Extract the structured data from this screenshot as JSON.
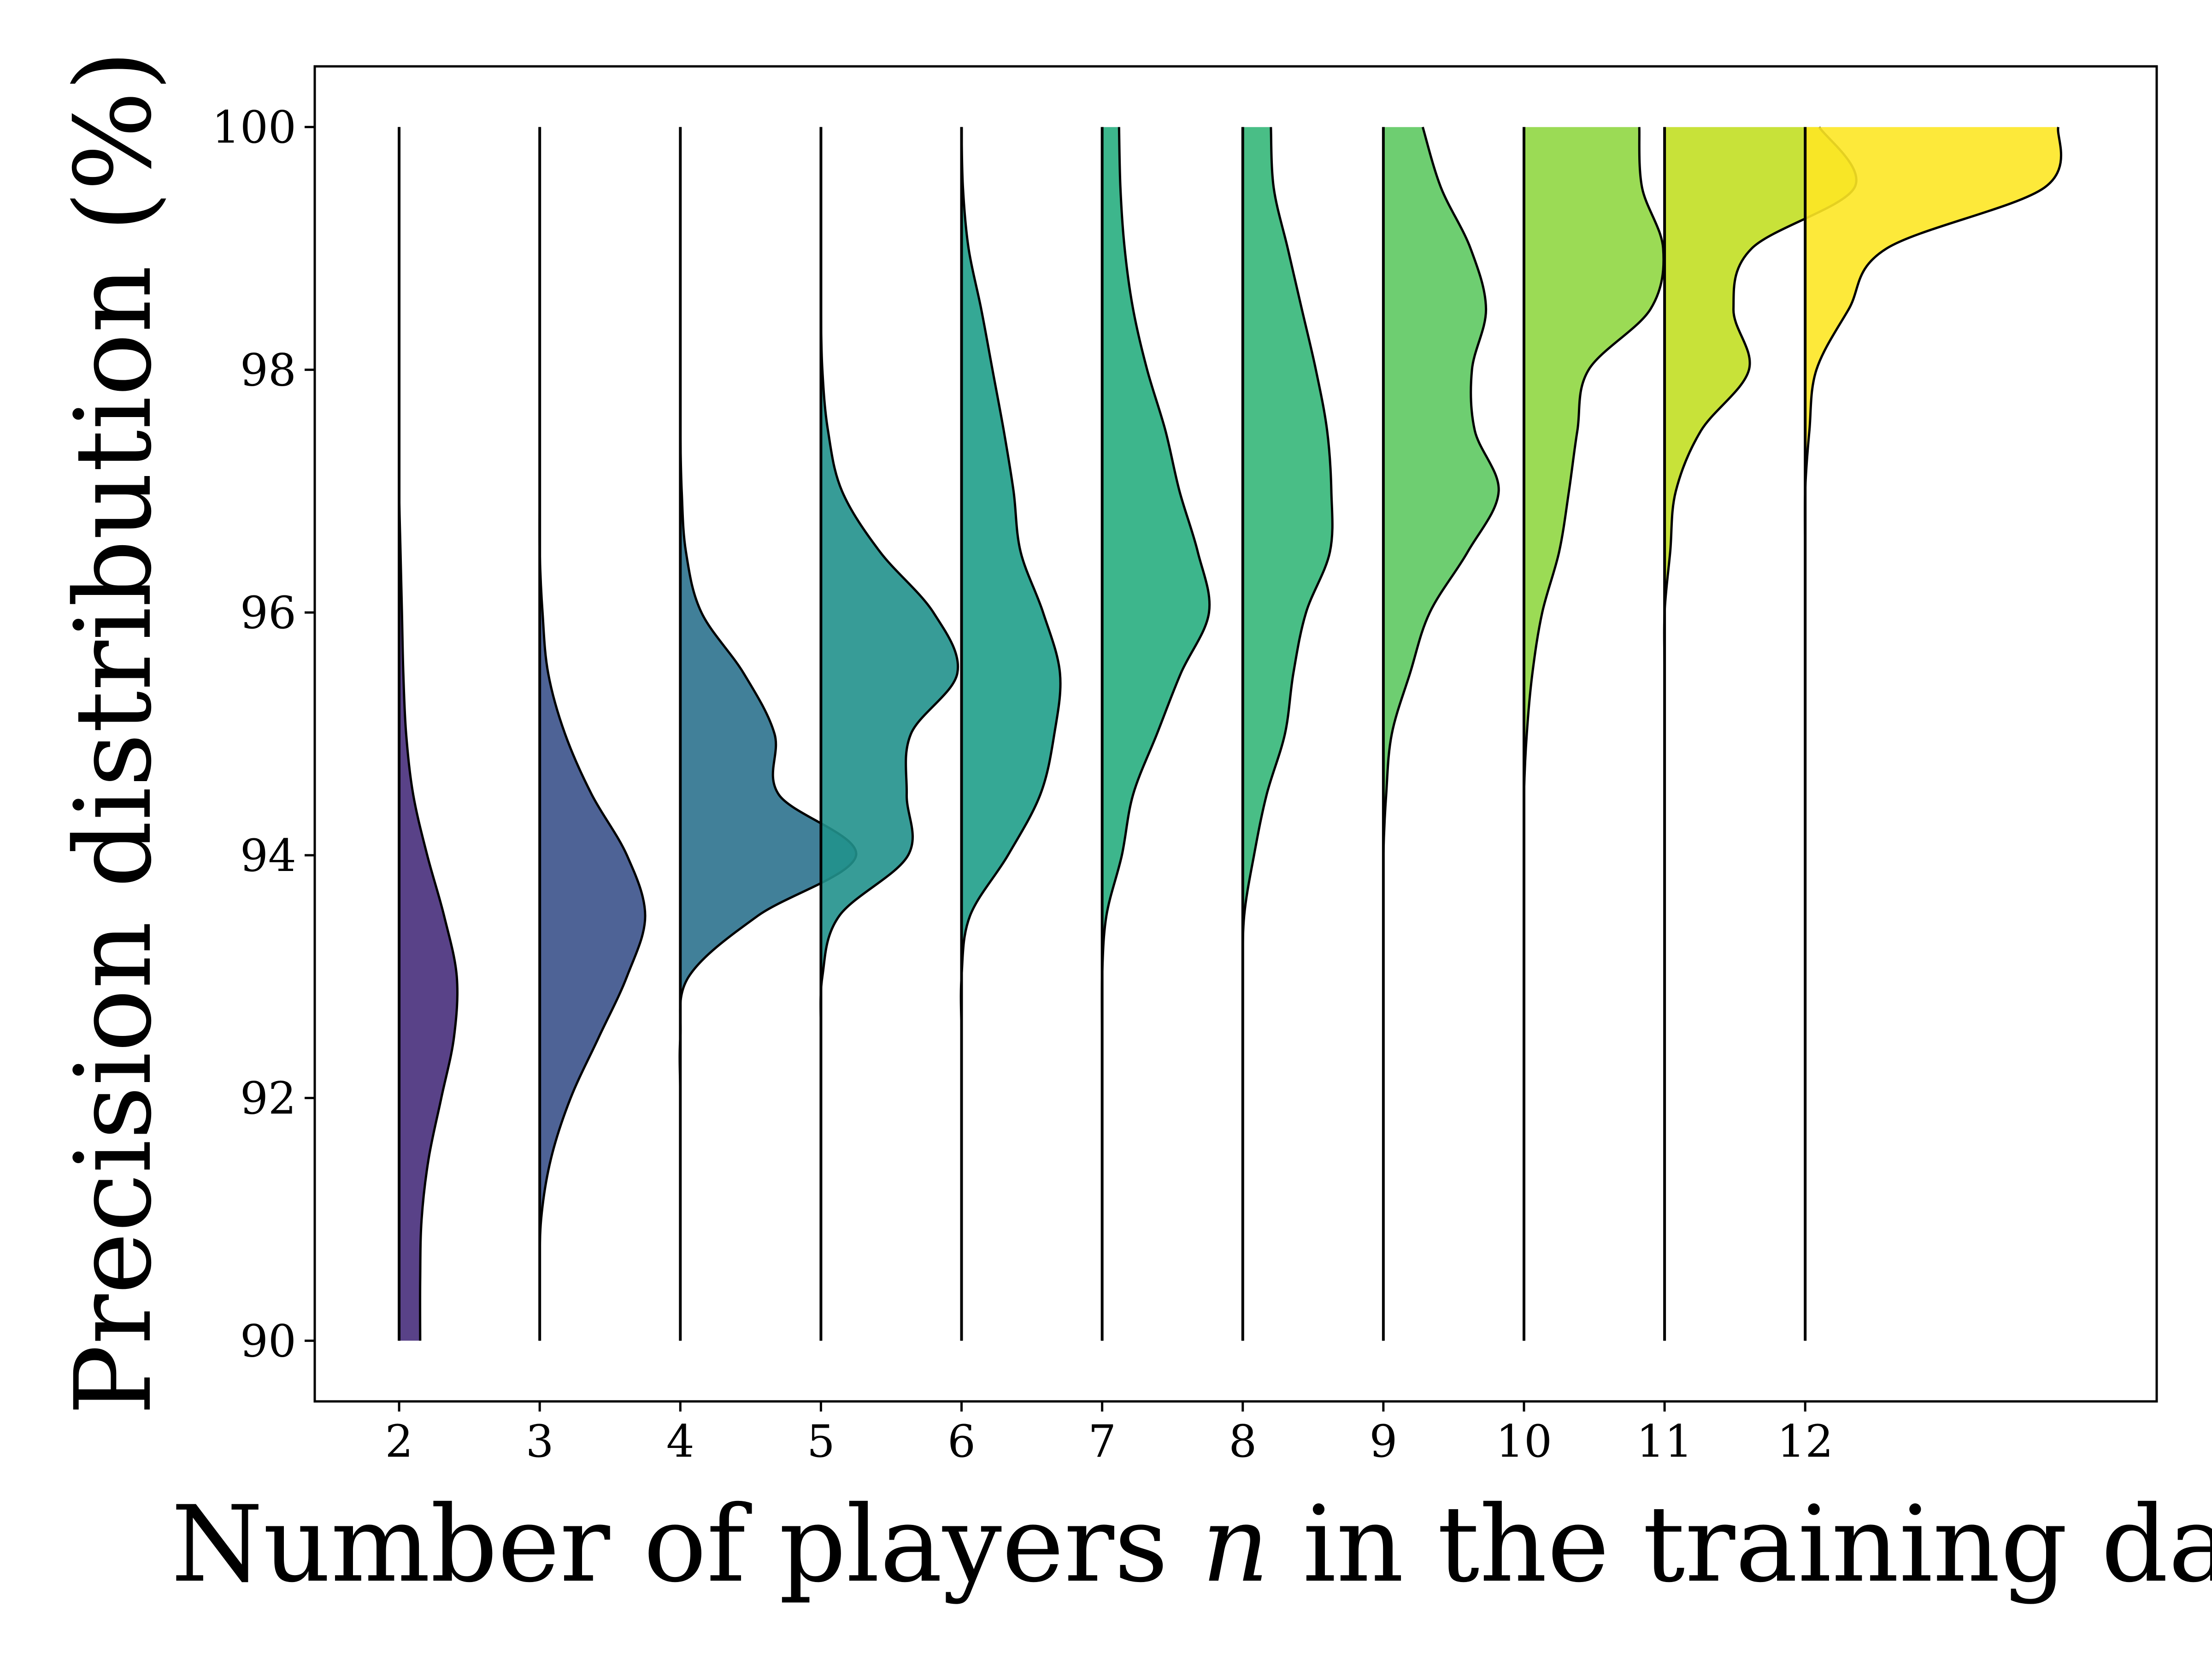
{
  "chart_data": {
    "type": "half-violin (ridgeline)",
    "xlabel_prefix": "Number of players ",
    "xlabel_var": "n",
    "xlabel_suffix": " in the training data",
    "ylabel": "Precision distribution (%)",
    "categories": [
      "2",
      "3",
      "4",
      "5",
      "6",
      "7",
      "8",
      "9",
      "10",
      "11",
      "12"
    ],
    "x_positions": [
      2,
      3,
      4,
      5,
      6,
      7,
      8,
      9,
      10,
      11,
      12
    ],
    "xlim": [
      1.4,
      14.5
    ],
    "ylim": [
      89.5,
      100.5
    ],
    "y_ticks": [
      90,
      92,
      94,
      96,
      98,
      100
    ],
    "y_range": [
      90,
      100
    ],
    "grid": false,
    "colors": [
      "#472d7b",
      "#3b528b",
      "#2c728e",
      "#21918c",
      "#1f9e89",
      "#28ae80",
      "#35b779",
      "#5ec962",
      "#90d743",
      "#c2df23",
      "#fde725"
    ],
    "series": [
      {
        "x": 2,
        "widths_y90_to_100": [
          0.15,
          0.15,
          0.16,
          0.21,
          0.3,
          0.39,
          0.41,
          0.32,
          0.2,
          0.1,
          0.05,
          0.03,
          0.02,
          0.01,
          0.0,
          0.0,
          0.0,
          0.0,
          0.0,
          0.0,
          0.0
        ]
      },
      {
        "x": 3,
        "widths_y90_to_100": [
          0.0,
          0.0,
          0.01,
          0.08,
          0.22,
          0.42,
          0.62,
          0.75,
          0.62,
          0.37,
          0.18,
          0.06,
          0.02,
          0.0,
          0.0,
          0.0,
          0.0,
          0.0,
          0.0,
          0.0,
          0.0
        ]
      },
      {
        "x": 4,
        "widths_y90_to_100": [
          0.0,
          0.0,
          0.0,
          0.0,
          0.0,
          0.0,
          0.06,
          0.55,
          1.25,
          0.7,
          0.67,
          0.45,
          0.15,
          0.04,
          0.01,
          0.0,
          0.0,
          0.0,
          0.0,
          0.0,
          0.0
        ]
      },
      {
        "x": 5,
        "widths_y90_to_100": [
          0.0,
          0.0,
          0.0,
          0.0,
          0.0,
          0.0,
          0.01,
          0.13,
          0.62,
          0.61,
          0.64,
          0.97,
          0.8,
          0.42,
          0.15,
          0.05,
          0.01,
          0.0,
          0.0,
          0.0,
          0.0
        ]
      },
      {
        "x": 6,
        "widths_y90_to_100": [
          0.0,
          0.0,
          0.0,
          0.0,
          0.0,
          0.0,
          0.0,
          0.06,
          0.33,
          0.56,
          0.66,
          0.7,
          0.58,
          0.42,
          0.37,
          0.3,
          0.22,
          0.14,
          0.05,
          0.01,
          0.0
        ]
      },
      {
        "x": 7,
        "widths_y90_to_100": [
          0.0,
          0.0,
          0.0,
          0.0,
          0.0,
          0.0,
          0.0,
          0.03,
          0.14,
          0.22,
          0.39,
          0.56,
          0.76,
          0.68,
          0.55,
          0.45,
          0.32,
          0.22,
          0.16,
          0.13,
          0.12
        ]
      },
      {
        "x": 8,
        "widths_y90_to_100": [
          0.0,
          0.0,
          0.0,
          0.0,
          0.0,
          0.0,
          0.0,
          0.01,
          0.08,
          0.17,
          0.3,
          0.36,
          0.45,
          0.62,
          0.63,
          0.6,
          0.52,
          0.42,
          0.32,
          0.22,
          0.2
        ]
      },
      {
        "x": 9,
        "widths_y90_to_100": [
          0.0,
          0.0,
          0.0,
          0.0,
          0.0,
          0.0,
          0.0,
          0.0,
          0.0,
          0.02,
          0.06,
          0.19,
          0.33,
          0.6,
          0.82,
          0.65,
          0.63,
          0.73,
          0.62,
          0.41,
          0.28
        ]
      },
      {
        "x": 10,
        "widths_y90_to_100": [
          0.0,
          0.0,
          0.0,
          0.0,
          0.0,
          0.0,
          0.0,
          0.0,
          0.0,
          0.0,
          0.02,
          0.06,
          0.13,
          0.25,
          0.32,
          0.38,
          0.46,
          0.9,
          0.99,
          0.84,
          0.82
        ]
      },
      {
        "x": 11,
        "widths_y90_to_100": [
          0.0,
          0.0,
          0.0,
          0.0,
          0.0,
          0.0,
          0.0,
          0.0,
          0.0,
          0.0,
          0.0,
          0.0,
          0.0,
          0.04,
          0.08,
          0.26,
          0.6,
          0.49,
          0.62,
          1.35,
          1.1
        ]
      },
      {
        "x": 12,
        "widths_y90_to_100": [
          0.0,
          0.0,
          0.0,
          0.0,
          0.0,
          0.0,
          0.0,
          0.0,
          0.0,
          0.0,
          0.0,
          0.0,
          0.0,
          0.0,
          0.0,
          0.03,
          0.08,
          0.31,
          0.58,
          1.7,
          1.8
        ]
      }
    ]
  }
}
